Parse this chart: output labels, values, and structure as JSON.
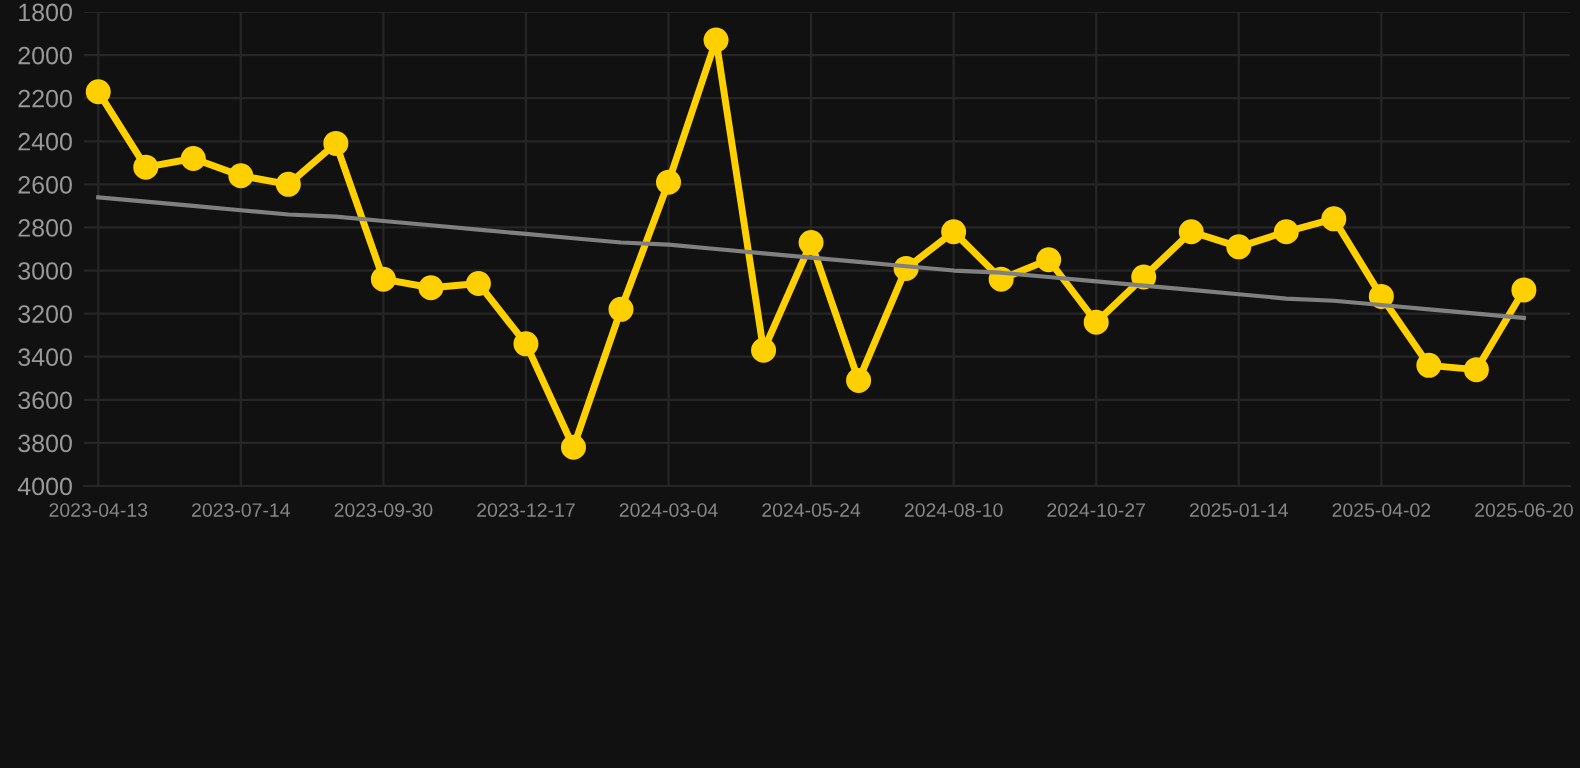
{
  "chart_data": {
    "type": "line",
    "categories": [
      "2023-04-13",
      null,
      null,
      "2023-07-14",
      null,
      null,
      "2023-09-30",
      null,
      null,
      "2023-12-17",
      null,
      null,
      "2024-03-04",
      null,
      null,
      "2024-05-24",
      null,
      null,
      "2024-08-10",
      null,
      null,
      "2024-10-27",
      null,
      null,
      "2025-01-14",
      null,
      null,
      "2025-04-02",
      null,
      null,
      "2025-06-20"
    ],
    "series": [
      {
        "color": "#ffd000",
        "marker": "circle",
        "values": [
          2170,
          2520,
          2480,
          2560,
          2600,
          2410,
          3040,
          3080,
          3060,
          3340,
          3820,
          3180,
          2590,
          1930,
          3370,
          2870,
          3510,
          2990,
          2820,
          3040,
          2950,
          3240,
          3030,
          2820,
          2890,
          2820,
          2760,
          3120,
          3440,
          3460,
          3090
        ]
      },
      {
        "type": "line",
        "color": "#808080",
        "marker": "none",
        "values": [
          2660,
          2680,
          2700,
          2720,
          2740,
          2750,
          2770,
          2790,
          2810,
          2830,
          2850,
          2870,
          2880,
          2900,
          2920,
          2940,
          2960,
          2980,
          3000,
          3010,
          3030,
          3050,
          3070,
          3090,
          3110,
          3130,
          3140,
          3160,
          3180,
          3200,
          3220
        ]
      }
    ],
    "ylim": [
      4000,
      1800
    ],
    "yticks": [
      1800,
      2000,
      2200,
      2400,
      2600,
      2800,
      3000,
      3200,
      3400,
      3600,
      3800,
      4000
    ],
    "grid": true,
    "line_style": "solid"
  }
}
